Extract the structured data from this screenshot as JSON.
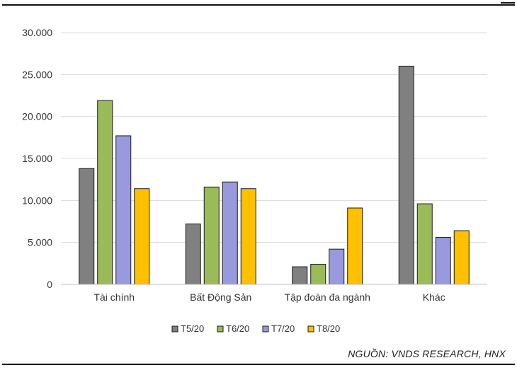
{
  "chart_data": {
    "type": "bar",
    "categories": [
      "Tài chính",
      "Bất Động Sản",
      "Tập đoàn đa ngành",
      "Khác"
    ],
    "series": [
      {
        "name": "T5/20",
        "color": "#808080",
        "values": [
          13800,
          7200,
          2100,
          26000
        ]
      },
      {
        "name": "T6/20",
        "color": "#9BBB59",
        "values": [
          21900,
          11600,
          2400,
          9600
        ]
      },
      {
        "name": "T7/20",
        "color": "#9999DD",
        "values": [
          17700,
          12200,
          4200,
          5600
        ]
      },
      {
        "name": "T8/20",
        "color": "#FFC000",
        "values": [
          11400,
          11400,
          9100,
          6400
        ]
      }
    ],
    "yticks": [
      "0",
      "5.000",
      "10.000",
      "15.000",
      "20.000",
      "25.000",
      "30.000"
    ],
    "ylim": [
      0,
      30000
    ],
    "grid": true,
    "legend_position": "bottom"
  },
  "source_text": "NGUỒN: VNDS RESEARCH, HNX"
}
